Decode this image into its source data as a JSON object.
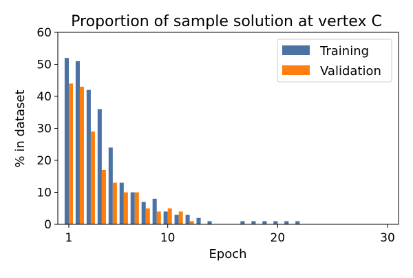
{
  "chart_data": {
    "type": "bar",
    "title": "Proportion of sample solution at vertex C",
    "xlabel": "Epoch",
    "ylabel": "% in dataset",
    "xlim": [
      0,
      31
    ],
    "ylim": [
      0,
      60
    ],
    "xticks": [
      1,
      10,
      20,
      30
    ],
    "yticks": [
      0,
      10,
      20,
      30,
      40,
      50,
      60
    ],
    "grid": false,
    "legend_position": "top-right",
    "x": [
      1,
      2,
      3,
      4,
      5,
      6,
      7,
      8,
      9,
      10,
      11,
      12,
      13,
      14,
      15,
      16,
      17,
      18,
      19,
      20,
      21,
      22,
      23,
      24,
      25,
      26,
      27,
      28,
      29,
      30
    ],
    "series": [
      {
        "name": "Training",
        "color": "#4c72a4",
        "values": [
          52,
          51,
          42,
          36,
          24,
          13,
          10,
          7,
          8,
          4,
          3,
          3,
          2,
          1,
          0,
          0,
          1,
          1,
          1,
          1,
          1,
          1,
          0,
          0,
          0,
          0,
          0,
          0,
          0,
          0
        ]
      },
      {
        "name": "Validation",
        "color": "#ff7f0e",
        "values": [
          44,
          43,
          29,
          17,
          13,
          10,
          10,
          5,
          4,
          5,
          4,
          1,
          0,
          0,
          0,
          0,
          0,
          0,
          0,
          0,
          0,
          0,
          0,
          0,
          0,
          0,
          0,
          0,
          0,
          0
        ]
      }
    ]
  }
}
